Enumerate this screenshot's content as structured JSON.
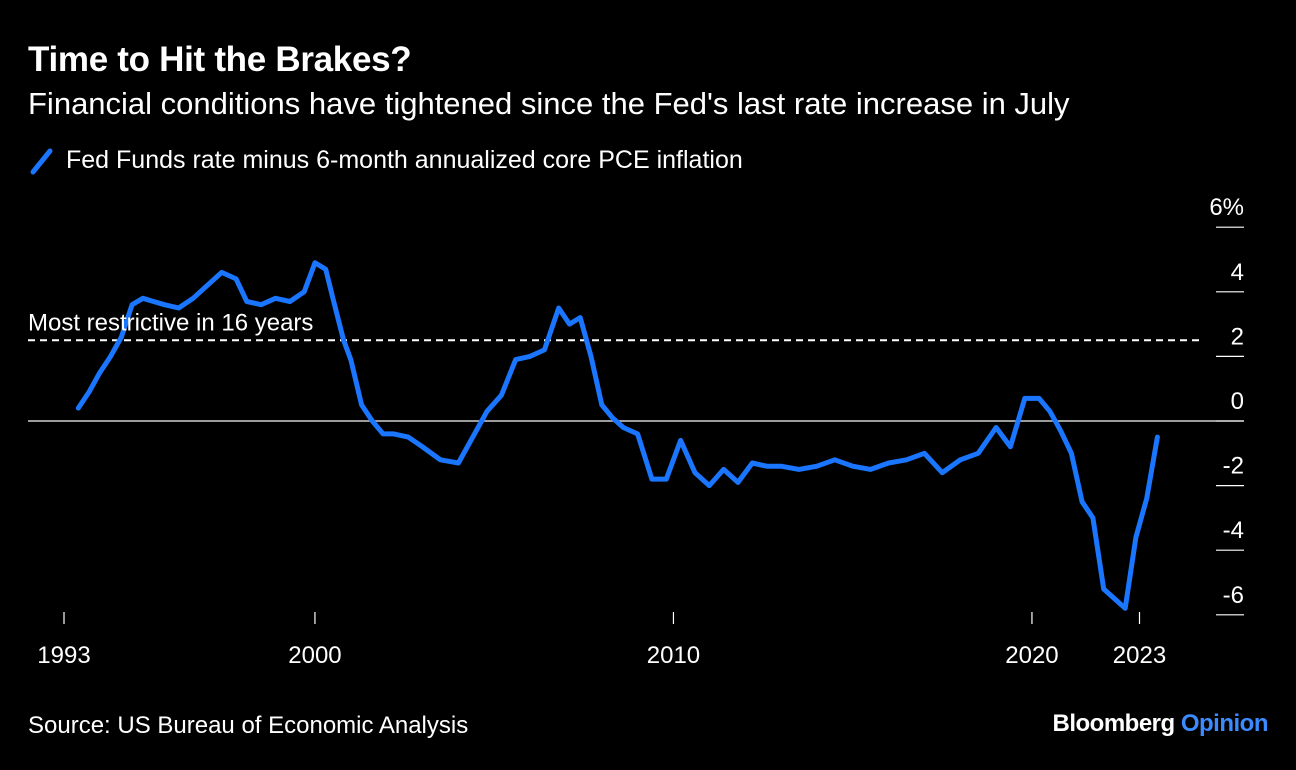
{
  "header": {
    "title": "Time to Hit the Brakes?",
    "subtitle": "Financial conditions have tightened since the Fed's last rate increase in July"
  },
  "footer": {
    "source": "Source: US Bureau of Economic Analysis",
    "brand_name": "Bloomberg",
    "brand_section": "Opinion"
  },
  "colors": {
    "background": "#000000",
    "series": "#1a75ff",
    "reference_line": "#ffffff"
  },
  "chart_data": {
    "type": "line",
    "title": "Time to Hit the Brakes?",
    "subtitle": "Financial conditions have tightened since the Fed's last rate increase in July",
    "legend_placement": "top-left",
    "grid": false,
    "y_axis_side": "right",
    "xlim": [
      1992.5,
      2024.3
    ],
    "ylim": [
      -6.3,
      6.3
    ],
    "x_ticks": [
      1993,
      2000,
      2010,
      2020,
      2023
    ],
    "x_tick_labels": [
      "1993",
      "2000",
      "2010",
      "2020",
      "2023"
    ],
    "y_ticks": [
      6,
      4,
      2,
      0,
      -2,
      -4,
      -6
    ],
    "y_tick_labels": [
      "6%",
      "4",
      "2",
      "0",
      "-2",
      "-4",
      "-6"
    ],
    "reference_lines": [
      {
        "y": 0,
        "style": "solid",
        "label": ""
      },
      {
        "y": 2.5,
        "style": "dashed",
        "label": "Most restrictive in 16 years"
      }
    ],
    "series": [
      {
        "name": "Fed Funds rate minus 6-month annualized core PCE inflation",
        "x": [
          1993.4,
          1993.7,
          1994.0,
          1994.3,
          1994.6,
          1994.9,
          1995.2,
          1995.5,
          1995.8,
          1996.2,
          1996.6,
          1997.0,
          1997.4,
          1997.8,
          1998.1,
          1998.5,
          1998.9,
          1999.3,
          1999.7,
          2000.0,
          2000.3,
          2000.5,
          2000.8,
          2001.0,
          2001.3,
          2001.6,
          2001.9,
          2002.2,
          2002.6,
          2003.0,
          2003.5,
          2004.0,
          2004.5,
          2004.8,
          2005.2,
          2005.6,
          2006.0,
          2006.4,
          2006.8,
          2007.1,
          2007.4,
          2007.7,
          2008.0,
          2008.3,
          2008.6,
          2009.0,
          2009.4,
          2009.8,
          2010.2,
          2010.6,
          2011.0,
          2011.4,
          2011.8,
          2012.2,
          2012.6,
          2013.0,
          2013.5,
          2014.0,
          2014.5,
          2015.0,
          2015.5,
          2016.0,
          2016.5,
          2017.0,
          2017.5,
          2018.0,
          2018.5,
          2019.0,
          2019.4,
          2019.8,
          2020.2,
          2020.5,
          2020.8,
          2021.1,
          2021.4,
          2021.7,
          2022.0,
          2022.3,
          2022.6,
          2022.9,
          2023.2,
          2023.5
        ],
        "y": [
          0.4,
          0.9,
          1.5,
          2.0,
          2.6,
          3.6,
          3.8,
          3.7,
          3.6,
          3.5,
          3.8,
          4.2,
          4.6,
          4.4,
          3.7,
          3.6,
          3.8,
          3.7,
          4.0,
          4.9,
          4.7,
          3.8,
          2.5,
          1.9,
          0.5,
          0.0,
          -0.4,
          -0.4,
          -0.5,
          -0.8,
          -1.2,
          -1.3,
          -0.3,
          0.3,
          0.8,
          1.9,
          2.0,
          2.2,
          3.5,
          3.0,
          3.2,
          2.0,
          0.5,
          0.1,
          -0.2,
          -0.4,
          -1.8,
          -1.8,
          -0.6,
          -1.6,
          -2.0,
          -1.5,
          -1.9,
          -1.3,
          -1.4,
          -1.4,
          -1.5,
          -1.4,
          -1.2,
          -1.4,
          -1.5,
          -1.3,
          -1.2,
          -1.0,
          -1.6,
          -1.2,
          -1.0,
          -0.2,
          -0.8,
          0.7,
          0.7,
          0.3,
          -0.3,
          -1.0,
          -2.5,
          -3.0,
          -5.2,
          -5.5,
          -5.8,
          -3.6,
          -2.4,
          -0.5
        ]
      }
    ]
  }
}
